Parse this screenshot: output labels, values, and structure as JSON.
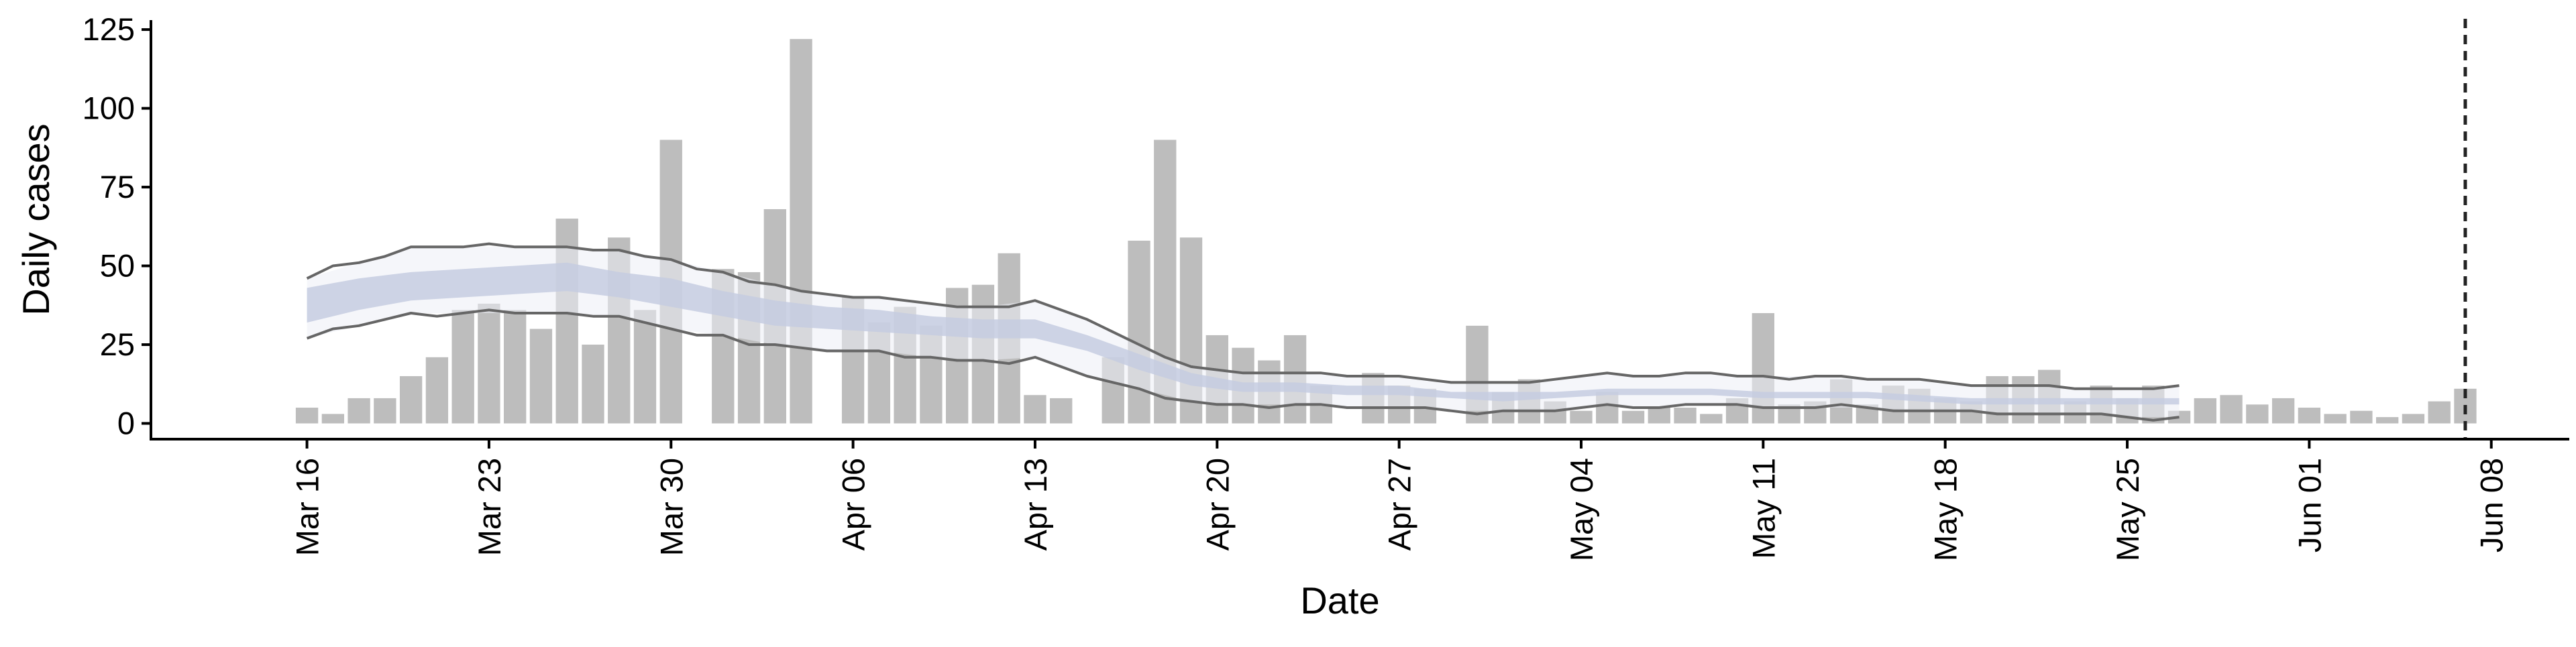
{
  "chart_data": {
    "type": "bar",
    "title": "",
    "xlabel": "Date",
    "ylabel": "Daily cases",
    "ylim": [
      -5,
      128
    ],
    "xlim": [
      "2020-03-10",
      "2020-06-11"
    ],
    "yticks": [
      0,
      25,
      50,
      75,
      100,
      125
    ],
    "xticks": [
      {
        "date": "2020-03-16",
        "label": "Mar 16"
      },
      {
        "date": "2020-03-23",
        "label": "Mar 23"
      },
      {
        "date": "2020-03-30",
        "label": "Mar 30"
      },
      {
        "date": "2020-04-06",
        "label": "Apr 06"
      },
      {
        "date": "2020-04-13",
        "label": "Apr 13"
      },
      {
        "date": "2020-04-20",
        "label": "Apr 20"
      },
      {
        "date": "2020-04-27",
        "label": "Apr 27"
      },
      {
        "date": "2020-05-04",
        "label": "May 04"
      },
      {
        "date": "2020-05-11",
        "label": "May 11"
      },
      {
        "date": "2020-05-18",
        "label": "May 18"
      },
      {
        "date": "2020-05-25",
        "label": "May 25"
      },
      {
        "date": "2020-06-01",
        "label": "Jun 01"
      },
      {
        "date": "2020-06-08",
        "label": "Jun 08"
      }
    ],
    "grid": false,
    "bars_start_date": "2020-03-16",
    "bars": [
      5,
      3,
      8,
      8,
      15,
      21,
      36,
      38,
      36,
      30,
      65,
      25,
      59,
      36,
      90,
      0,
      49,
      48,
      68,
      122,
      0,
      40,
      32,
      37,
      31,
      43,
      44,
      54,
      9,
      8,
      0,
      21,
      58,
      90,
      59,
      28,
      24,
      20,
      28,
      12,
      0,
      16,
      12,
      11,
      0,
      31,
      10,
      14,
      7,
      4,
      10,
      4,
      5,
      5,
      3,
      8,
      35,
      6,
      7,
      14,
      6,
      12,
      11,
      8,
      7,
      15,
      15,
      17,
      7,
      12,
      8,
      12,
      4,
      8,
      9,
      6,
      8,
      5,
      3,
      4,
      2,
      3,
      7,
      11
    ],
    "series": [
      {
        "values": [
          [
            "2020-03-16",
            46
          ],
          [
            "2020-03-17",
            50
          ],
          [
            "2020-03-18",
            51
          ],
          [
            "2020-03-19",
            53
          ],
          [
            "2020-03-20",
            56
          ],
          [
            "2020-03-21",
            56
          ],
          [
            "2020-03-22",
            56
          ],
          [
            "2020-03-23",
            57
          ],
          [
            "2020-03-24",
            56
          ],
          [
            "2020-03-25",
            56
          ],
          [
            "2020-03-26",
            56
          ],
          [
            "2020-03-27",
            55
          ],
          [
            "2020-03-28",
            55
          ],
          [
            "2020-03-29",
            53
          ],
          [
            "2020-03-30",
            52
          ],
          [
            "2020-03-31",
            49
          ],
          [
            "2020-04-01",
            48
          ],
          [
            "2020-04-02",
            45
          ],
          [
            "2020-04-03",
            44
          ],
          [
            "2020-04-04",
            42
          ],
          [
            "2020-04-05",
            41
          ],
          [
            "2020-04-06",
            40
          ],
          [
            "2020-04-07",
            40
          ],
          [
            "2020-04-08",
            39
          ],
          [
            "2020-04-09",
            38
          ],
          [
            "2020-04-10",
            37
          ],
          [
            "2020-04-11",
            37
          ],
          [
            "2020-04-12",
            37
          ],
          [
            "2020-04-13",
            39
          ],
          [
            "2020-04-14",
            36
          ],
          [
            "2020-04-15",
            33
          ],
          [
            "2020-04-16",
            29
          ],
          [
            "2020-04-17",
            25
          ],
          [
            "2020-04-18",
            21
          ],
          [
            "2020-04-19",
            18
          ],
          [
            "2020-04-20",
            17
          ],
          [
            "2020-04-21",
            16
          ],
          [
            "2020-04-22",
            16
          ],
          [
            "2020-04-23",
            16
          ],
          [
            "2020-04-24",
            16
          ],
          [
            "2020-04-25",
            15
          ],
          [
            "2020-04-26",
            15
          ],
          [
            "2020-04-27",
            15
          ],
          [
            "2020-04-28",
            14
          ],
          [
            "2020-04-29",
            13
          ],
          [
            "2020-04-30",
            13
          ],
          [
            "2020-05-01",
            13
          ],
          [
            "2020-05-02",
            13
          ],
          [
            "2020-05-03",
            14
          ],
          [
            "2020-05-04",
            15
          ],
          [
            "2020-05-05",
            16
          ],
          [
            "2020-05-06",
            15
          ],
          [
            "2020-05-07",
            15
          ],
          [
            "2020-05-08",
            16
          ],
          [
            "2020-05-09",
            16
          ],
          [
            "2020-05-10",
            15
          ],
          [
            "2020-05-11",
            15
          ],
          [
            "2020-05-12",
            14
          ],
          [
            "2020-05-13",
            15
          ],
          [
            "2020-05-14",
            15
          ],
          [
            "2020-05-15",
            14
          ],
          [
            "2020-05-16",
            14
          ],
          [
            "2020-05-17",
            14
          ],
          [
            "2020-05-18",
            13
          ],
          [
            "2020-05-19",
            12
          ],
          [
            "2020-05-20",
            12
          ],
          [
            "2020-05-21",
            12
          ],
          [
            "2020-05-22",
            12
          ],
          [
            "2020-05-23",
            11
          ],
          [
            "2020-05-24",
            11
          ],
          [
            "2020-05-25",
            11
          ],
          [
            "2020-05-26",
            11
          ],
          [
            "2020-05-27",
            12
          ]
        ]
      },
      {
        "values": [
          [
            "2020-03-16",
            27
          ],
          [
            "2020-03-17",
            30
          ],
          [
            "2020-03-18",
            31
          ],
          [
            "2020-03-19",
            33
          ],
          [
            "2020-03-20",
            35
          ],
          [
            "2020-03-21",
            34
          ],
          [
            "2020-03-22",
            35
          ],
          [
            "2020-03-23",
            36
          ],
          [
            "2020-03-24",
            35
          ],
          [
            "2020-03-25",
            35
          ],
          [
            "2020-03-26",
            35
          ],
          [
            "2020-03-27",
            34
          ],
          [
            "2020-03-28",
            34
          ],
          [
            "2020-03-29",
            32
          ],
          [
            "2020-03-30",
            30
          ],
          [
            "2020-03-31",
            28
          ],
          [
            "2020-04-01",
            28
          ],
          [
            "2020-04-02",
            25
          ],
          [
            "2020-04-03",
            25
          ],
          [
            "2020-04-04",
            24
          ],
          [
            "2020-04-05",
            23
          ],
          [
            "2020-04-06",
            23
          ],
          [
            "2020-04-07",
            23
          ],
          [
            "2020-04-08",
            21
          ],
          [
            "2020-04-09",
            21
          ],
          [
            "2020-04-10",
            20
          ],
          [
            "2020-04-11",
            20
          ],
          [
            "2020-04-12",
            19
          ],
          [
            "2020-04-13",
            21
          ],
          [
            "2020-04-14",
            18
          ],
          [
            "2020-04-15",
            15
          ],
          [
            "2020-04-16",
            13
          ],
          [
            "2020-04-17",
            11
          ],
          [
            "2020-04-18",
            8
          ],
          [
            "2020-04-19",
            7
          ],
          [
            "2020-04-20",
            6
          ],
          [
            "2020-04-21",
            6
          ],
          [
            "2020-04-22",
            5
          ],
          [
            "2020-04-23",
            6
          ],
          [
            "2020-04-24",
            6
          ],
          [
            "2020-04-25",
            5
          ],
          [
            "2020-04-26",
            5
          ],
          [
            "2020-04-27",
            5
          ],
          [
            "2020-04-28",
            5
          ],
          [
            "2020-04-29",
            4
          ],
          [
            "2020-04-30",
            3
          ],
          [
            "2020-05-01",
            4
          ],
          [
            "2020-05-02",
            4
          ],
          [
            "2020-05-03",
            4
          ],
          [
            "2020-05-04",
            5
          ],
          [
            "2020-05-05",
            6
          ],
          [
            "2020-05-06",
            5
          ],
          [
            "2020-05-07",
            5
          ],
          [
            "2020-05-08",
            6
          ],
          [
            "2020-05-09",
            6
          ],
          [
            "2020-05-10",
            6
          ],
          [
            "2020-05-11",
            5
          ],
          [
            "2020-05-12",
            5
          ],
          [
            "2020-05-13",
            5
          ],
          [
            "2020-05-14",
            6
          ],
          [
            "2020-05-15",
            5
          ],
          [
            "2020-05-16",
            4
          ],
          [
            "2020-05-17",
            4
          ],
          [
            "2020-05-18",
            4
          ],
          [
            "2020-05-19",
            4
          ],
          [
            "2020-05-20",
            3
          ],
          [
            "2020-05-21",
            3
          ],
          [
            "2020-05-22",
            3
          ],
          [
            "2020-05-23",
            3
          ],
          [
            "2020-05-24",
            3
          ],
          [
            "2020-05-25",
            2
          ],
          [
            "2020-05-26",
            1
          ],
          [
            "2020-05-27",
            2
          ]
        ]
      }
    ],
    "bands": [
      {
        "values": [
          [
            "2020-03-16",
            32,
            43
          ],
          [
            "2020-03-18",
            36,
            46
          ],
          [
            "2020-03-20",
            39,
            48
          ],
          [
            "2020-03-22",
            40,
            49
          ],
          [
            "2020-03-24",
            41,
            50
          ],
          [
            "2020-03-26",
            42,
            51
          ],
          [
            "2020-03-28",
            40,
            48
          ],
          [
            "2020-03-30",
            37,
            46
          ],
          [
            "2020-04-01",
            34,
            42
          ],
          [
            "2020-04-03",
            31,
            39
          ],
          [
            "2020-04-05",
            30,
            37
          ],
          [
            "2020-04-07",
            29,
            36
          ],
          [
            "2020-04-09",
            28,
            34
          ],
          [
            "2020-04-11",
            27,
            33
          ],
          [
            "2020-04-13",
            27,
            33
          ],
          [
            "2020-04-15",
            23,
            28
          ],
          [
            "2020-04-17",
            17,
            22
          ],
          [
            "2020-04-19",
            12,
            16
          ],
          [
            "2020-04-21",
            10,
            13
          ],
          [
            "2020-04-23",
            10,
            13
          ],
          [
            "2020-04-25",
            9,
            12
          ],
          [
            "2020-04-27",
            9,
            12
          ],
          [
            "2020-04-29",
            8,
            10
          ],
          [
            "2020-05-01",
            7,
            10
          ],
          [
            "2020-05-03",
            8,
            10
          ],
          [
            "2020-05-05",
            9,
            11
          ],
          [
            "2020-05-07",
            9,
            11
          ],
          [
            "2020-05-09",
            9,
            11
          ],
          [
            "2020-05-11",
            8,
            10
          ],
          [
            "2020-05-13",
            8,
            10
          ],
          [
            "2020-05-15",
            8,
            10
          ],
          [
            "2020-05-17",
            7,
            9
          ],
          [
            "2020-05-19",
            6,
            8
          ],
          [
            "2020-05-21",
            6,
            8
          ],
          [
            "2020-05-23",
            6,
            8
          ],
          [
            "2020-05-25",
            6,
            8
          ],
          [
            "2020-05-27",
            6,
            8
          ]
        ]
      },
      {
        "values": [
          [
            "2020-03-16",
            27,
            46
          ],
          [
            "2020-03-18",
            31,
            51
          ],
          [
            "2020-03-20",
            35,
            56
          ],
          [
            "2020-03-22",
            35,
            56
          ],
          [
            "2020-03-24",
            35,
            56
          ],
          [
            "2020-03-26",
            35,
            56
          ],
          [
            "2020-03-28",
            34,
            55
          ],
          [
            "2020-03-30",
            30,
            52
          ],
          [
            "2020-04-01",
            28,
            48
          ],
          [
            "2020-04-03",
            25,
            44
          ],
          [
            "2020-04-05",
            23,
            41
          ],
          [
            "2020-04-07",
            23,
            40
          ],
          [
            "2020-04-09",
            21,
            38
          ],
          [
            "2020-04-11",
            20,
            37
          ],
          [
            "2020-04-13",
            21,
            39
          ],
          [
            "2020-04-15",
            15,
            33
          ],
          [
            "2020-04-17",
            11,
            25
          ],
          [
            "2020-04-19",
            7,
            18
          ],
          [
            "2020-04-21",
            6,
            16
          ],
          [
            "2020-04-23",
            6,
            16
          ],
          [
            "2020-04-25",
            5,
            15
          ],
          [
            "2020-04-27",
            5,
            15
          ],
          [
            "2020-04-29",
            4,
            13
          ],
          [
            "2020-05-01",
            4,
            13
          ],
          [
            "2020-05-03",
            4,
            14
          ],
          [
            "2020-05-05",
            6,
            16
          ],
          [
            "2020-05-07",
            5,
            15
          ],
          [
            "2020-05-09",
            6,
            16
          ],
          [
            "2020-05-11",
            5,
            15
          ],
          [
            "2020-05-13",
            5,
            15
          ],
          [
            "2020-05-15",
            5,
            14
          ],
          [
            "2020-05-17",
            4,
            14
          ],
          [
            "2020-05-19",
            4,
            12
          ],
          [
            "2020-05-21",
            3,
            12
          ],
          [
            "2020-05-23",
            3,
            11
          ],
          [
            "2020-05-25",
            2,
            11
          ],
          [
            "2020-05-27",
            2,
            12
          ]
        ]
      }
    ],
    "vline_date": "2020-06-07",
    "colors": {
      "bars": "#bdbdbd",
      "band_outer": "#eceff6",
      "band_inner": "#c5cde0",
      "lines": "#666666",
      "axes": "#000000"
    }
  }
}
